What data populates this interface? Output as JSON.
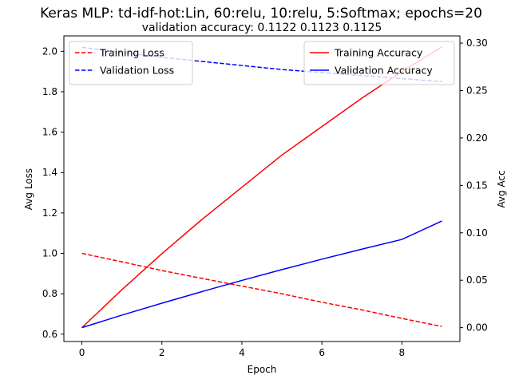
{
  "chart_data": {
    "type": "line",
    "title": "Keras MLP: td-idf-hot:Lin, 60:relu, 10:relu, 5:Softmax; epochs=20",
    "subtitle": "validation accuracy:  0.1122  0.1123  0.1125",
    "xlabel": "Epoch",
    "ylabel_left": "Avg Loss",
    "ylabel_right": "Avg Acc",
    "x": [
      0,
      1,
      2,
      3,
      4,
      5,
      6,
      7,
      8,
      9
    ],
    "xlim": [
      -0.45,
      9.45
    ],
    "xticks": [
      0,
      2,
      4,
      6,
      8
    ],
    "ylim_left": [
      0.5636,
      2.0764
    ],
    "yticks_left": [
      0.6,
      0.8,
      1.0,
      1.2,
      1.4,
      1.6,
      1.8,
      2.0
    ],
    "ylim_right": [
      -0.0146,
      0.3076
    ],
    "yticks_right": [
      0.0,
      0.05,
      0.1,
      0.15,
      0.2,
      0.25,
      0.3
    ],
    "grid": false,
    "series": [
      {
        "name": "Training Loss",
        "axis": "left",
        "color": "#ff0000",
        "dash": true,
        "values": [
          1.0,
          0.958,
          0.915,
          0.876,
          0.838,
          0.8,
          0.758,
          0.72,
          0.678,
          0.638
        ]
      },
      {
        "name": "Validation Loss",
        "axis": "left",
        "color": "#0000ff",
        "dash": true,
        "values": [
          2.02,
          1.995,
          1.97,
          1.95,
          1.93,
          1.91,
          1.895,
          1.88,
          1.865,
          1.85
        ]
      },
      {
        "name": "Training Accuracy",
        "axis": "right",
        "color": "#ff0000",
        "dash": false,
        "values": [
          0.0,
          0.04,
          0.078,
          0.114,
          0.148,
          0.182,
          0.212,
          0.242,
          0.27,
          0.296
        ]
      },
      {
        "name": "Validation Accuracy",
        "axis": "right",
        "color": "#0000ff",
        "dash": false,
        "values": [
          0.0,
          0.0132,
          0.0258,
          0.038,
          0.0498,
          0.0612,
          0.0722,
          0.0828,
          0.093,
          0.1125
        ]
      }
    ],
    "legends": [
      {
        "placement": "upper-left",
        "entries": [
          "Training Loss",
          "Validation Loss"
        ]
      },
      {
        "placement": "upper-right",
        "entries": [
          "Training Accuracy",
          "Validation Accuracy"
        ]
      }
    ]
  }
}
